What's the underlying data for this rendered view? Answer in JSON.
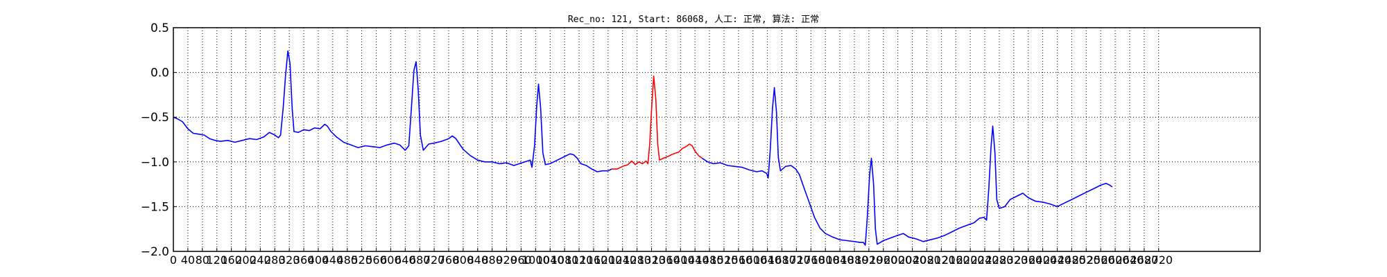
{
  "chart_data": {
    "type": "line",
    "title": "Rec_no: 121, Start: 86068, 人工: 正常, 算法: 正常",
    "xlabel": "",
    "ylabel": "",
    "xlim": [
      0,
      3000
    ],
    "ylim": [
      -2.0,
      0.5
    ],
    "grid": true,
    "x_tick_step": 40,
    "x_tick_last": 2720,
    "y_ticks": [
      0.5,
      0.0,
      -0.5,
      -1.0,
      -1.5,
      -2.0
    ],
    "y_tick_labels": [
      "0.5",
      "0.0",
      "−0.5",
      "−1.0",
      "−1.5",
      "−2.0"
    ],
    "series_colors": [
      "#0000ff",
      "#ff0000",
      "#0000ff"
    ],
    "series": [
      {
        "segment": "before",
        "color": "#0000ff",
        "points": [
          [
            0,
            -0.5
          ],
          [
            12,
            -0.52
          ],
          [
            25,
            -0.55
          ],
          [
            40,
            -0.63
          ],
          [
            55,
            -0.68
          ],
          [
            70,
            -0.69
          ],
          [
            85,
            -0.7
          ],
          [
            100,
            -0.74
          ],
          [
            115,
            -0.76
          ],
          [
            130,
            -0.77
          ],
          [
            150,
            -0.76
          ],
          [
            170,
            -0.78
          ],
          [
            190,
            -0.76
          ],
          [
            210,
            -0.74
          ],
          [
            230,
            -0.75
          ],
          [
            250,
            -0.72
          ],
          [
            265,
            -0.67
          ],
          [
            280,
            -0.7
          ],
          [
            290,
            -0.73
          ],
          [
            296,
            -0.7
          ],
          [
            303,
            -0.4
          ],
          [
            310,
            -0.02
          ],
          [
            316,
            0.24
          ],
          [
            322,
            0.1
          ],
          [
            328,
            -0.4
          ],
          [
            333,
            -0.66
          ],
          [
            345,
            -0.67
          ],
          [
            360,
            -0.64
          ],
          [
            375,
            -0.65
          ],
          [
            390,
            -0.62
          ],
          [
            405,
            -0.63
          ],
          [
            418,
            -0.58
          ],
          [
            425,
            -0.6
          ],
          [
            435,
            -0.66
          ],
          [
            450,
            -0.72
          ],
          [
            470,
            -0.78
          ],
          [
            490,
            -0.81
          ],
          [
            510,
            -0.84
          ],
          [
            530,
            -0.82
          ],
          [
            550,
            -0.83
          ],
          [
            570,
            -0.84
          ],
          [
            590,
            -0.81
          ],
          [
            610,
            -0.79
          ],
          [
            625,
            -0.81
          ],
          [
            640,
            -0.87
          ],
          [
            650,
            -0.82
          ],
          [
            657,
            -0.4
          ],
          [
            664,
            0.02
          ],
          [
            670,
            0.12
          ],
          [
            676,
            -0.2
          ],
          [
            682,
            -0.7
          ],
          [
            690,
            -0.87
          ],
          [
            705,
            -0.8
          ],
          [
            720,
            -0.79
          ],
          [
            740,
            -0.77
          ],
          [
            760,
            -0.74
          ],
          [
            770,
            -0.71
          ],
          [
            780,
            -0.74
          ],
          [
            790,
            -0.8
          ],
          [
            800,
            -0.86
          ],
          [
            820,
            -0.93
          ],
          [
            840,
            -0.98
          ],
          [
            860,
            -1.0
          ],
          [
            880,
            -1.0
          ],
          [
            900,
            -1.02
          ],
          [
            920,
            -1.01
          ],
          [
            940,
            -1.04
          ],
          [
            955,
            -1.02
          ],
          [
            970,
            -1.0
          ],
          [
            985,
            -0.98
          ],
          [
            990,
            -1.06
          ],
          [
            997,
            -0.82
          ],
          [
            1003,
            -0.38
          ],
          [
            1008,
            -0.13
          ],
          [
            1014,
            -0.4
          ],
          [
            1020,
            -0.9
          ],
          [
            1027,
            -1.03
          ],
          [
            1040,
            -1.02
          ],
          [
            1060,
            -0.98
          ],
          [
            1080,
            -0.94
          ],
          [
            1095,
            -0.91
          ],
          [
            1105,
            -0.92
          ],
          [
            1115,
            -0.96
          ],
          [
            1125,
            -1.02
          ],
          [
            1140,
            -1.04
          ],
          [
            1155,
            -1.08
          ],
          [
            1170,
            -1.11
          ],
          [
            1185,
            -1.1
          ],
          [
            1200,
            -1.1
          ],
          [
            1210,
            -1.08
          ]
        ]
      },
      {
        "segment": "highlighted",
        "color": "#ff0000",
        "points": [
          [
            1210,
            -1.08
          ],
          [
            1225,
            -1.08
          ],
          [
            1240,
            -1.05
          ],
          [
            1255,
            -1.03
          ],
          [
            1265,
            -0.99
          ],
          [
            1275,
            -1.03
          ],
          [
            1285,
            -1.0
          ],
          [
            1295,
            -1.02
          ],
          [
            1305,
            -0.99
          ],
          [
            1310,
            -1.02
          ],
          [
            1315,
            -0.8
          ],
          [
            1321,
            -0.35
          ],
          [
            1326,
            -0.04
          ],
          [
            1332,
            -0.3
          ],
          [
            1337,
            -0.8
          ],
          [
            1342,
            -0.98
          ],
          [
            1352,
            -0.96
          ],
          [
            1365,
            -0.94
          ],
          [
            1380,
            -0.91
          ],
          [
            1395,
            -0.89
          ],
          [
            1405,
            -0.85
          ],
          [
            1415,
            -0.83
          ],
          [
            1425,
            -0.8
          ],
          [
            1432,
            -0.82
          ],
          [
            1440,
            -0.88
          ],
          [
            1450,
            -0.93
          ],
          [
            1460,
            -0.96
          ]
        ]
      },
      {
        "segment": "after",
        "color": "#0000ff",
        "points": [
          [
            1460,
            -0.96
          ],
          [
            1475,
            -1.0
          ],
          [
            1490,
            -1.02
          ],
          [
            1510,
            -1.01
          ],
          [
            1530,
            -1.04
          ],
          [
            1550,
            -1.05
          ],
          [
            1570,
            -1.06
          ],
          [
            1590,
            -1.09
          ],
          [
            1610,
            -1.11
          ],
          [
            1625,
            -1.1
          ],
          [
            1638,
            -1.13
          ],
          [
            1642,
            -1.18
          ],
          [
            1648,
            -0.85
          ],
          [
            1654,
            -0.4
          ],
          [
            1659,
            -0.17
          ],
          [
            1665,
            -0.45
          ],
          [
            1670,
            -0.95
          ],
          [
            1676,
            -1.1
          ],
          [
            1690,
            -1.05
          ],
          [
            1705,
            -1.04
          ],
          [
            1718,
            -1.08
          ],
          [
            1728,
            -1.14
          ],
          [
            1740,
            -1.28
          ],
          [
            1755,
            -1.45
          ],
          [
            1770,
            -1.62
          ],
          [
            1785,
            -1.74
          ],
          [
            1800,
            -1.8
          ],
          [
            1820,
            -1.84
          ],
          [
            1840,
            -1.87
          ],
          [
            1860,
            -1.88
          ],
          [
            1880,
            -1.89
          ],
          [
            1895,
            -1.9
          ],
          [
            1905,
            -1.9
          ],
          [
            1910,
            -1.93
          ],
          [
            1916,
            -1.6
          ],
          [
            1922,
            -1.15
          ],
          [
            1927,
            -0.96
          ],
          [
            1933,
            -1.25
          ],
          [
            1938,
            -1.75
          ],
          [
            1943,
            -1.92
          ],
          [
            1960,
            -1.88
          ],
          [
            1980,
            -1.85
          ],
          [
            2000,
            -1.82
          ],
          [
            2015,
            -1.8
          ],
          [
            2030,
            -1.84
          ],
          [
            2050,
            -1.86
          ],
          [
            2070,
            -1.89
          ],
          [
            2090,
            -1.87
          ],
          [
            2110,
            -1.85
          ],
          [
            2130,
            -1.82
          ],
          [
            2150,
            -1.78
          ],
          [
            2170,
            -1.74
          ],
          [
            2190,
            -1.71
          ],
          [
            2210,
            -1.68
          ],
          [
            2225,
            -1.63
          ],
          [
            2238,
            -1.62
          ],
          [
            2245,
            -1.65
          ],
          [
            2251,
            -1.3
          ],
          [
            2257,
            -0.85
          ],
          [
            2262,
            -0.6
          ],
          [
            2268,
            -0.9
          ],
          [
            2273,
            -1.42
          ],
          [
            2280,
            -1.52
          ],
          [
            2295,
            -1.5
          ],
          [
            2310,
            -1.42
          ],
          [
            2330,
            -1.38
          ],
          [
            2345,
            -1.35
          ],
          [
            2360,
            -1.4
          ],
          [
            2380,
            -1.44
          ],
          [
            2400,
            -1.45
          ],
          [
            2420,
            -1.47
          ],
          [
            2440,
            -1.5
          ],
          [
            2460,
            -1.46
          ],
          [
            2480,
            -1.42
          ],
          [
            2500,
            -1.38
          ],
          [
            2520,
            -1.34
          ],
          [
            2540,
            -1.3
          ],
          [
            2560,
            -1.26
          ],
          [
            2575,
            -1.24
          ],
          [
            2585,
            -1.26
          ],
          [
            2592,
            -1.28
          ]
        ]
      }
    ]
  }
}
